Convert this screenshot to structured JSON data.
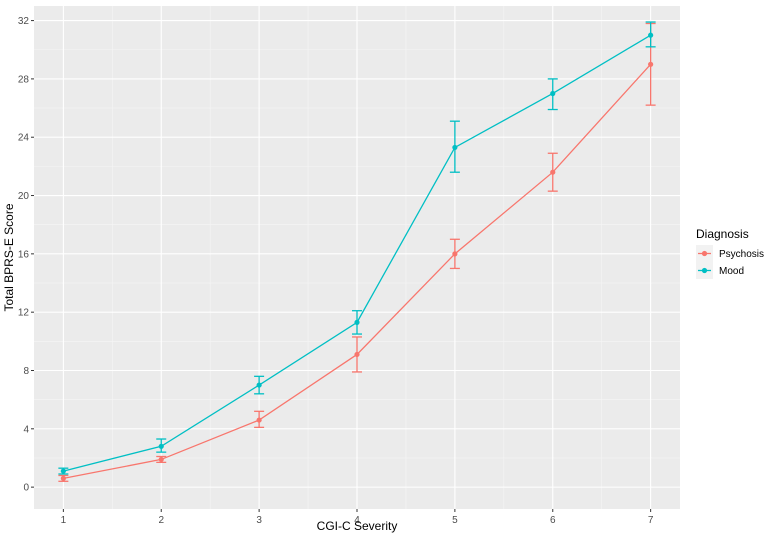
{
  "chart_data": {
    "type": "line",
    "xlabel": "CGI-C Severity",
    "ylabel": "Total BPRS-E Score",
    "x": [
      1,
      2,
      3,
      4,
      5,
      6,
      7
    ],
    "xlim": [
      0.7,
      7.3
    ],
    "ylim": [
      -1.5,
      33
    ],
    "xticks": [
      1,
      2,
      3,
      4,
      5,
      6,
      7
    ],
    "yticks": [
      0,
      4,
      8,
      12,
      16,
      20,
      24,
      28,
      32
    ],
    "grid": true,
    "legend": {
      "title": "Diagnosis",
      "placement": "right",
      "entries": [
        "Psychosis",
        "Mood"
      ]
    },
    "series": [
      {
        "name": "Psychosis",
        "color": "#F8766D",
        "values": [
          0.6,
          1.9,
          4.6,
          9.1,
          16.0,
          21.6,
          29.0
        ],
        "error_low": [
          0.4,
          1.7,
          4.1,
          7.9,
          15.0,
          20.3,
          26.2
        ],
        "error_high": [
          0.8,
          2.1,
          5.2,
          10.3,
          17.0,
          22.9,
          31.8
        ]
      },
      {
        "name": "Mood",
        "color": "#00BFC4",
        "values": [
          1.1,
          2.8,
          7.0,
          11.3,
          23.3,
          27.0,
          31.0
        ],
        "error_low": [
          0.9,
          2.4,
          6.4,
          10.5,
          21.6,
          25.9,
          30.2
        ],
        "error_high": [
          1.3,
          3.3,
          7.6,
          12.1,
          25.1,
          28.0,
          31.9
        ]
      }
    ]
  }
}
